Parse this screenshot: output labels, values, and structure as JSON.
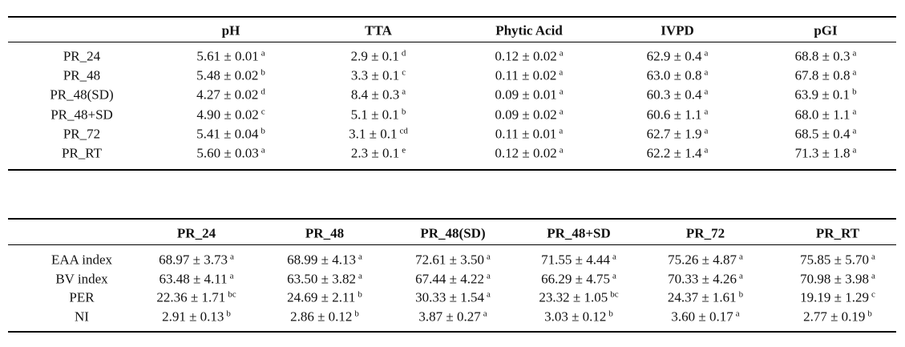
{
  "tables": [
    {
      "header": [
        "pH",
        "TTA",
        "Phytic Acid",
        "IVPD",
        "pGI"
      ],
      "rows": [
        {
          "label": "PR_24",
          "cells": [
            {
              "value": "5.61 ± 0.01",
              "sup": "a"
            },
            {
              "value": "2.9 ± 0.1",
              "sup": "d"
            },
            {
              "value": "0.12 ± 0.02",
              "sup": "a"
            },
            {
              "value": "62.9 ± 0.4",
              "sup": "a"
            },
            {
              "value": "68.8 ± 0.3",
              "sup": "a"
            }
          ]
        },
        {
          "label": "PR_48",
          "cells": [
            {
              "value": "5.48 ± 0.02",
              "sup": "b"
            },
            {
              "value": "3.3 ± 0.1",
              "sup": "c"
            },
            {
              "value": "0.11 ± 0.02",
              "sup": "a"
            },
            {
              "value": "63.0 ± 0.8",
              "sup": "a"
            },
            {
              "value": "67.8 ± 0.8",
              "sup": "a"
            }
          ]
        },
        {
          "label": "PR_48(SD)",
          "cells": [
            {
              "value": "4.27 ± 0.02",
              "sup": "d"
            },
            {
              "value": "8.4 ± 0.3",
              "sup": "a"
            },
            {
              "value": "0.09 ± 0.01",
              "sup": "a"
            },
            {
              "value": "60.3 ± 0.4",
              "sup": "a"
            },
            {
              "value": "63.9 ± 0.1",
              "sup": "b"
            }
          ]
        },
        {
          "label": "PR_48+SD",
          "cells": [
            {
              "value": "4.90 ± 0.02",
              "sup": "c"
            },
            {
              "value": "5.1 ± 0.1",
              "sup": "b"
            },
            {
              "value": "0.09 ± 0.02",
              "sup": "a"
            },
            {
              "value": "60.6 ± 1.1",
              "sup": "a"
            },
            {
              "value": "68.0 ± 1.1",
              "sup": "a"
            }
          ]
        },
        {
          "label": "PR_72",
          "cells": [
            {
              "value": "5.41 ± 0.04",
              "sup": "b"
            },
            {
              "value": "3.1 ± 0.1",
              "sup": "cd"
            },
            {
              "value": "0.11 ± 0.01",
              "sup": "a"
            },
            {
              "value": "62.7 ± 1.9",
              "sup": "a"
            },
            {
              "value": "68.5 ± 0.4",
              "sup": "a"
            }
          ]
        },
        {
          "label": "PR_RT",
          "cells": [
            {
              "value": "5.60 ± 0.03",
              "sup": "a"
            },
            {
              "value": "2.3 ± 0.1",
              "sup": "e"
            },
            {
              "value": "0.12 ± 0.02",
              "sup": "a"
            },
            {
              "value": "62.2 ± 1.4",
              "sup": "a"
            },
            {
              "value": "71.3 ± 1.8",
              "sup": "a"
            }
          ]
        }
      ]
    },
    {
      "header": [
        "PR_24",
        "PR_48",
        "PR_48(SD)",
        "PR_48+SD",
        "PR_72",
        "PR_RT"
      ],
      "rows": [
        {
          "label": "EAA index",
          "cells": [
            {
              "value": "68.97 ± 3.73",
              "sup": "a"
            },
            {
              "value": "68.99 ± 4.13",
              "sup": "a"
            },
            {
              "value": "72.61 ± 3.50",
              "sup": "a"
            },
            {
              "value": "71.55 ± 4.44",
              "sup": "a"
            },
            {
              "value": "75.26 ± 4.87",
              "sup": "a"
            },
            {
              "value": "75.85 ± 5.70",
              "sup": "a"
            }
          ]
        },
        {
          "label": "BV index",
          "cells": [
            {
              "value": "63.48 ± 4.11",
              "sup": "a"
            },
            {
              "value": "63.50 ± 3.82",
              "sup": "a"
            },
            {
              "value": "67.44 ± 4.22",
              "sup": "a"
            },
            {
              "value": "66.29 ± 4.75",
              "sup": "a"
            },
            {
              "value": "70.33 ± 4.26",
              "sup": "a"
            },
            {
              "value": "70.98 ± 3.98",
              "sup": "a"
            }
          ]
        },
        {
          "label": "PER",
          "cells": [
            {
              "value": "22.36 ± 1.71",
              "sup": "bc"
            },
            {
              "value": "24.69 ± 2.11",
              "sup": "b"
            },
            {
              "value": "30.33 ± 1.54",
              "sup": "a"
            },
            {
              "value": "23.32 ± 1.05",
              "sup": "bc"
            },
            {
              "value": "24.37 ± 1.61",
              "sup": "b"
            },
            {
              "value": "19.19 ± 1.29",
              "sup": "c"
            }
          ]
        },
        {
          "label": "NI",
          "cells": [
            {
              "value": "2.91 ± 0.13",
              "sup": "b"
            },
            {
              "value": "2.86 ± 0.12",
              "sup": "b"
            },
            {
              "value": "3.87 ± 0.27",
              "sup": "a"
            },
            {
              "value": "3.03 ± 0.12",
              "sup": "b"
            },
            {
              "value": "3.60 ± 0.17",
              "sup": "a"
            },
            {
              "value": "2.77 ± 0.19",
              "sup": "b"
            }
          ]
        }
      ]
    }
  ]
}
